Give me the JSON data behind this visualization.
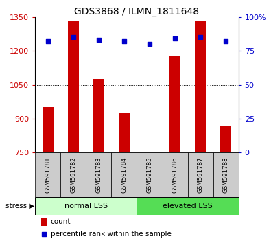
{
  "title": "GDS3868 / ILMN_1811648",
  "categories": [
    "GSM591781",
    "GSM591782",
    "GSM591783",
    "GSM591784",
    "GSM591785",
    "GSM591786",
    "GSM591787",
    "GSM591788"
  ],
  "bar_values": [
    950,
    1330,
    1075,
    925,
    755,
    1180,
    1330,
    865
  ],
  "percentile_values": [
    82,
    85,
    83,
    82,
    80,
    84,
    85,
    82
  ],
  "bar_color": "#cc0000",
  "dot_color": "#0000cc",
  "left_ylim": [
    750,
    1350
  ],
  "left_yticks": [
    750,
    900,
    1050,
    1200,
    1350
  ],
  "right_ylim": [
    0,
    100
  ],
  "right_yticks": [
    0,
    25,
    50,
    75,
    100
  ],
  "right_yticklabels": [
    "0",
    "25",
    "50",
    "75",
    "100%"
  ],
  "group1_label": "normal LSS",
  "group2_label": "elevated LSS",
  "group1_indices": [
    0,
    1,
    2,
    3
  ],
  "group2_indices": [
    4,
    5,
    6,
    7
  ],
  "group1_color": "#ccffcc",
  "group2_color": "#55dd55",
  "stress_label": "stress ▶",
  "legend_count_label": "count",
  "legend_pct_label": "percentile rank within the sample",
  "title_color": "#000000",
  "left_axis_color": "#cc0000",
  "right_axis_color": "#0000cc",
  "grid_color": "#000000",
  "tick_area_bg": "#cccccc"
}
